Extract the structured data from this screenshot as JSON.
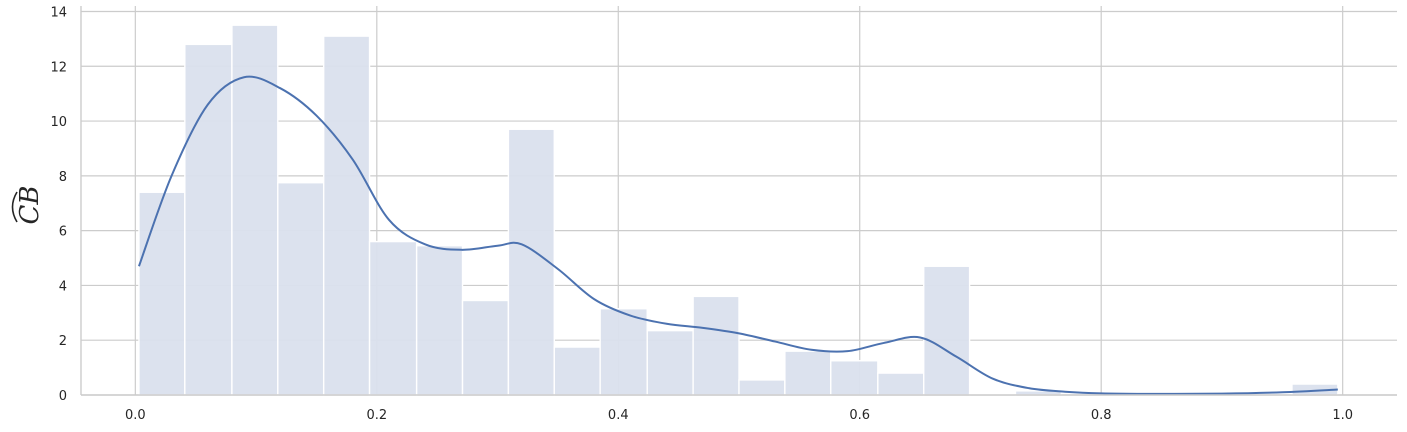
{
  "chart_data": {
    "type": "bar",
    "title": "",
    "xlabel": "",
    "ylabel": "CB",
    "ylabel_accent": "̑",
    "xlim": [
      -0.045,
      1.045
    ],
    "ylim": [
      0,
      14.2
    ],
    "xticks": [
      0.0,
      0.2,
      0.4,
      0.6,
      0.8,
      1.0
    ],
    "xtick_labels": [
      "0.0",
      "0.2",
      "0.4",
      "0.6",
      "0.8",
      "1.0"
    ],
    "yticks": [
      0,
      2,
      4,
      6,
      8,
      10,
      12,
      14
    ],
    "ytick_labels": [
      "0",
      "2",
      "4",
      "6",
      "8",
      "10",
      "12",
      "14"
    ],
    "grid": true,
    "bins": {
      "edges": [
        0.003,
        0.041,
        0.08,
        0.118,
        0.156,
        0.194,
        0.233,
        0.271,
        0.309,
        0.347,
        0.385,
        0.424,
        0.462,
        0.5,
        0.538,
        0.576,
        0.615,
        0.653,
        0.691,
        0.729,
        0.767,
        0.805,
        0.844,
        0.882,
        0.92,
        0.958,
        0.996
      ],
      "values": [
        7.4,
        12.8,
        13.5,
        7.75,
        13.1,
        5.6,
        5.45,
        3.45,
        9.7,
        1.75,
        3.15,
        2.35,
        3.6,
        0.55,
        1.6,
        1.25,
        0.8,
        4.7,
        0.05,
        0.15,
        0.0,
        0.0,
        0.0,
        0.0,
        0.0,
        0.4
      ]
    },
    "kde": {
      "x": [
        0.003,
        0.03,
        0.06,
        0.09,
        0.12,
        0.15,
        0.18,
        0.21,
        0.24,
        0.27,
        0.3,
        0.32,
        0.35,
        0.38,
        0.41,
        0.44,
        0.47,
        0.5,
        0.53,
        0.56,
        0.59,
        0.62,
        0.65,
        0.68,
        0.71,
        0.74,
        0.77,
        0.8,
        0.85,
        0.9,
        0.95,
        0.996
      ],
      "y": [
        4.7,
        8.0,
        10.6,
        11.6,
        11.2,
        10.2,
        8.6,
        6.4,
        5.5,
        5.3,
        5.45,
        5.5,
        4.6,
        3.5,
        2.9,
        2.6,
        2.45,
        2.25,
        1.95,
        1.65,
        1.6,
        1.9,
        2.1,
        1.4,
        0.6,
        0.25,
        0.12,
        0.06,
        0.04,
        0.05,
        0.1,
        0.2
      ]
    },
    "colors": {
      "bar": "#dae0ed",
      "bar_edge": "#ffffff",
      "kde": "#4c72b0",
      "grid": "#cccccc",
      "axis": "#cccccc",
      "text": "#262626"
    }
  }
}
